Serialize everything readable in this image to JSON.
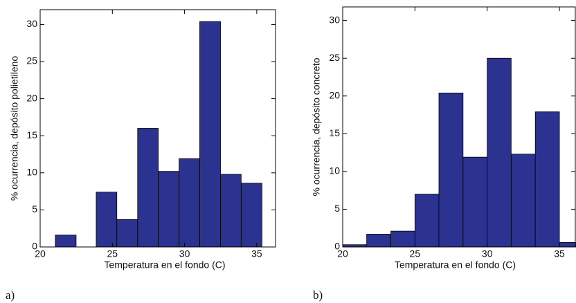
{
  "chart_data": [
    {
      "type": "histogram",
      "label": "a)",
      "xlabel": "Temperatura en el fondo (C)",
      "ylabel": "% ocurrencia, depósito polietileno",
      "bins": [
        21.05,
        22.49,
        23.88,
        25.31,
        26.75,
        28.18,
        29.62,
        31.05,
        32.49,
        33.92,
        35.36
      ],
      "values": [
        1.6,
        0,
        7.4,
        3.7,
        16,
        10.2,
        11.9,
        30.4,
        9.8,
        8.6
      ],
      "color": "#2b3290",
      "xlim": [
        20,
        36.3
      ],
      "ylim": [
        0,
        32
      ],
      "xticks": [
        20,
        25,
        30,
        35
      ],
      "yticks": [
        0,
        5,
        10,
        15,
        20,
        25,
        30
      ]
    },
    {
      "type": "histogram",
      "label": "b)",
      "xlabel": "Temperatura en el fondo (C)",
      "ylabel": "% ocurrencia, depósito concreto",
      "bins": [
        20,
        21.66,
        23.33,
        25,
        26.66,
        28.33,
        30,
        31.66,
        33.33,
        35,
        36.66
      ],
      "values": [
        0.3,
        1.7,
        2.1,
        7.0,
        20.4,
        11.9,
        25.0,
        12.3,
        17.9,
        0.6
      ],
      "color": "#2b3290",
      "xlim": [
        20,
        36.1
      ],
      "ylim": [
        0,
        31.8
      ],
      "xticks": [
        20,
        25,
        30,
        35
      ],
      "yticks": [
        0,
        5,
        10,
        15,
        20,
        25,
        30
      ]
    }
  ]
}
